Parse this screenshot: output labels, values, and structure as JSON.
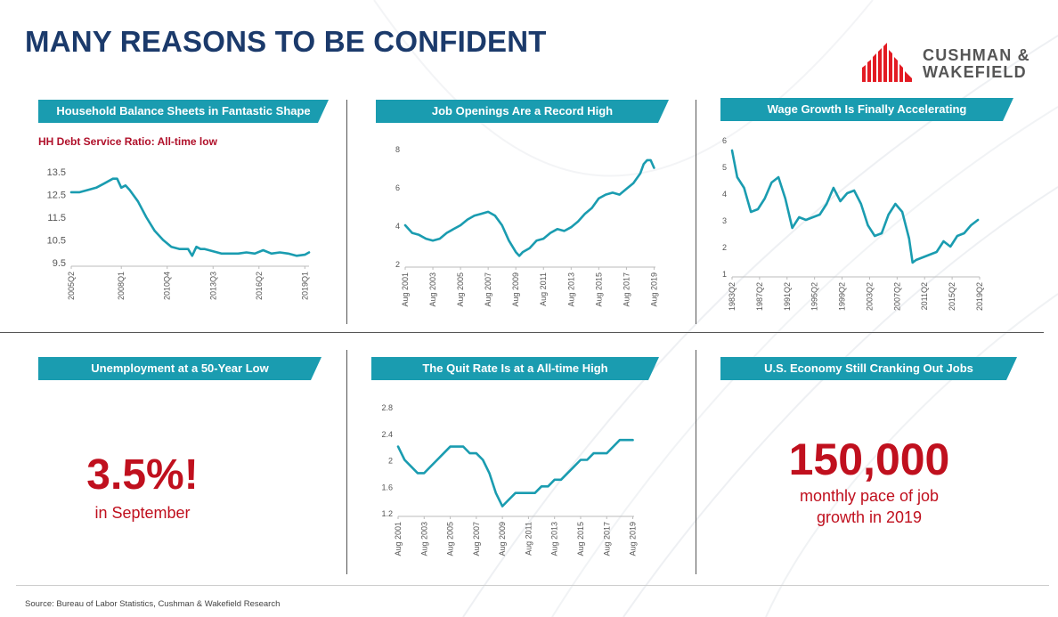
{
  "page": {
    "title": "MANY REASONS TO BE CONFIDENT",
    "logo": {
      "line1": "CUSHMAN &",
      "line2": "WAKEFIELD",
      "color": "#e31b23"
    },
    "source": "Source:  Bureau of Labor Statistics, Cushman & Wakefield Research",
    "accent": "#1a9cb0",
    "highlight": "#c0101e"
  },
  "panels": {
    "household": {
      "title": "Household Balance Sheets in Fantastic Shape",
      "subtitle": "HH Debt Service Ratio: All-time low"
    },
    "job_openings": {
      "title": "Job Openings Are a Record High"
    },
    "wage": {
      "title": "Wage Growth Is Finally Accelerating"
    },
    "unemployment": {
      "title": "Unemployment at a 50-Year Low",
      "value": "3.5%!",
      "caption": "in September"
    },
    "quit": {
      "title": "The Quit Rate Is at a All-time High"
    },
    "jobs": {
      "title": "U.S. Economy Still Cranking Out Jobs",
      "value": "150,000",
      "caption_line1": "monthly pace of job",
      "caption_line2": "growth in 2019"
    }
  },
  "chart_data": [
    {
      "id": "household",
      "type": "line",
      "title": "HH Debt Service Ratio: All-time low",
      "x_domain": [
        2005.0,
        2019.25
      ],
      "ylim": [
        9.5,
        13.5
      ],
      "yticks": [
        9.5,
        10.5,
        11.5,
        12.5,
        13.5
      ],
      "yticklabels": [
        "9.5",
        "10.5",
        "11.5",
        "12.5",
        "13.5"
      ],
      "xticks": [
        2005.0,
        2008.0,
        2010.75,
        2013.5,
        2016.25,
        2019.0
      ],
      "xticklabels": [
        "2005Q2",
        "2008Q1",
        "2010Q4",
        "2013Q3",
        "2016Q2",
        "2019Q1"
      ],
      "series": [
        {
          "name": "HH Debt Service Ratio",
          "x": [
            2005.0,
            2005.5,
            2006.0,
            2006.5,
            2007.0,
            2007.5,
            2007.75,
            2008.0,
            2008.25,
            2008.5,
            2009.0,
            2009.5,
            2010.0,
            2010.5,
            2011.0,
            2011.5,
            2012.0,
            2012.25,
            2012.5,
            2012.75,
            2013.0,
            2013.5,
            2014.0,
            2014.5,
            2015.0,
            2015.5,
            2016.0,
            2016.5,
            2017.0,
            2017.5,
            2018.0,
            2018.5,
            2019.0,
            2019.25
          ],
          "values": [
            12.6,
            12.6,
            12.7,
            12.8,
            13.0,
            13.2,
            13.2,
            12.8,
            12.9,
            12.7,
            12.2,
            11.5,
            10.9,
            10.5,
            10.2,
            10.1,
            10.1,
            9.8,
            10.2,
            10.1,
            10.1,
            10.0,
            9.9,
            9.9,
            9.9,
            9.95,
            9.9,
            10.05,
            9.9,
            9.95,
            9.9,
            9.8,
            9.85,
            9.95
          ]
        }
      ]
    },
    {
      "id": "job_openings",
      "type": "line",
      "title": "Job Openings Are a Record High",
      "x_domain": [
        2001.0,
        2019.1
      ],
      "ylim": [
        2,
        8
      ],
      "yticks": [
        2,
        4,
        6,
        8
      ],
      "yticklabels": [
        "2",
        "4",
        "6",
        "8"
      ],
      "xticks": [
        2001.0,
        2003.0,
        2005.0,
        2007.0,
        2009.0,
        2011.0,
        2013.0,
        2015.0,
        2017.0,
        2019.0
      ],
      "xticklabels": [
        "Aug 2001",
        "Aug 2003",
        "Aug 2005",
        "Aug 2007",
        "Aug 2009",
        "Aug 2011",
        "Aug 2013",
        "Aug 2015",
        "Aug 2017",
        "Aug 2019"
      ],
      "series": [
        {
          "name": "Job Openings",
          "x": [
            2001.0,
            2001.5,
            2002.0,
            2002.5,
            2003.0,
            2003.5,
            2004.0,
            2004.5,
            2005.0,
            2005.5,
            2006.0,
            2006.5,
            2007.0,
            2007.5,
            2008.0,
            2008.5,
            2009.0,
            2009.25,
            2009.5,
            2010.0,
            2010.5,
            2011.0,
            2011.5,
            2012.0,
            2012.5,
            2013.0,
            2013.5,
            2014.0,
            2014.5,
            2015.0,
            2015.5,
            2016.0,
            2016.5,
            2017.0,
            2017.5,
            2018.0,
            2018.25,
            2018.5,
            2018.75,
            2019.0
          ],
          "values": [
            4.0,
            3.6,
            3.5,
            3.3,
            3.2,
            3.3,
            3.6,
            3.8,
            4.0,
            4.3,
            4.5,
            4.6,
            4.7,
            4.5,
            4.0,
            3.2,
            2.6,
            2.4,
            2.6,
            2.8,
            3.2,
            3.3,
            3.6,
            3.8,
            3.7,
            3.9,
            4.2,
            4.6,
            4.9,
            5.4,
            5.6,
            5.7,
            5.6,
            5.9,
            6.2,
            6.7,
            7.2,
            7.4,
            7.4,
            7.0
          ]
        }
      ]
    },
    {
      "id": "wage",
      "type": "line",
      "title": "Wage Growth Is Finally Accelerating",
      "x_domain": [
        1983.25,
        2019.25
      ],
      "ylim": [
        1,
        6
      ],
      "yticks": [
        1,
        2,
        3,
        4,
        5,
        6
      ],
      "yticklabels": [
        "1",
        "2",
        "3",
        "4",
        "5",
        "6"
      ],
      "xticks": [
        1983.25,
        1987.25,
        1991.25,
        1995.25,
        1999.25,
        2003.25,
        2007.25,
        2011.25,
        2015.25,
        2019.25
      ],
      "xticklabels": [
        "1983Q2",
        "1987Q2",
        "1991Q2",
        "1995Q2",
        "1999Q2",
        "2003Q2",
        "2007Q2",
        "2011Q2",
        "2015Q2",
        "2019Q2"
      ],
      "series": [
        {
          "name": "Wage Growth",
          "x": [
            1983.25,
            1984.0,
            1985.0,
            1986.0,
            1987.0,
            1988.0,
            1989.0,
            1990.0,
            1991.0,
            1992.0,
            1993.0,
            1994.0,
            1995.0,
            1996.0,
            1997.0,
            1998.0,
            1999.0,
            2000.0,
            2001.0,
            2002.0,
            2003.0,
            2004.0,
            2005.0,
            2006.0,
            2007.0,
            2008.0,
            2009.0,
            2009.5,
            2010.0,
            2011.0,
            2012.0,
            2013.0,
            2014.0,
            2015.0,
            2016.0,
            2017.0,
            2018.0,
            2019.0
          ],
          "values": [
            5.6,
            4.6,
            4.2,
            3.3,
            3.4,
            3.8,
            4.4,
            4.6,
            3.8,
            2.7,
            3.1,
            3.0,
            3.1,
            3.2,
            3.6,
            4.2,
            3.7,
            4.0,
            4.1,
            3.6,
            2.8,
            2.4,
            2.5,
            3.2,
            3.6,
            3.3,
            2.3,
            1.4,
            1.5,
            1.6,
            1.7,
            1.8,
            2.2,
            2.0,
            2.4,
            2.5,
            2.8,
            3.0
          ]
        }
      ]
    },
    {
      "id": "quit",
      "type": "line",
      "title": "The Quit Rate Is at a All-time High",
      "x_domain": [
        2001.0,
        2019.1
      ],
      "ylim": [
        1.2,
        2.8
      ],
      "yticks": [
        1.2,
        1.6,
        2.0,
        2.4,
        2.8
      ],
      "yticklabels": [
        "1.2",
        "1.6",
        "2",
        "2.4",
        "2.8"
      ],
      "xticks": [
        2001.0,
        2003.0,
        2005.0,
        2007.0,
        2009.0,
        2011.0,
        2013.0,
        2015.0,
        2017.0,
        2019.0
      ],
      "xticklabels": [
        "Aug 2001",
        "Aug 2003",
        "Aug 2005",
        "Aug 2007",
        "Aug 2009",
        "Aug 2011",
        "Aug 2013",
        "Aug 2015",
        "Aug 2017",
        "Aug 2019"
      ],
      "series": [
        {
          "name": "Quit Rate",
          "x": [
            2001.0,
            2001.5,
            2002.0,
            2002.5,
            2003.0,
            2003.5,
            2004.0,
            2004.5,
            2005.0,
            2005.5,
            2006.0,
            2006.5,
            2007.0,
            2007.5,
            2008.0,
            2008.5,
            2009.0,
            2009.5,
            2010.0,
            2010.5,
            2011.0,
            2011.5,
            2012.0,
            2012.5,
            2013.0,
            2013.5,
            2014.0,
            2014.5,
            2015.0,
            2015.5,
            2016.0,
            2016.5,
            2017.0,
            2017.5,
            2018.0,
            2018.5,
            2019.0
          ],
          "values": [
            2.2,
            2.0,
            1.9,
            1.8,
            1.8,
            1.9,
            2.0,
            2.1,
            2.2,
            2.2,
            2.2,
            2.1,
            2.1,
            2.0,
            1.8,
            1.5,
            1.3,
            1.4,
            1.5,
            1.5,
            1.5,
            1.5,
            1.6,
            1.6,
            1.7,
            1.7,
            1.8,
            1.9,
            2.0,
            2.0,
            2.1,
            2.1,
            2.1,
            2.2,
            2.3,
            2.3,
            2.3
          ]
        }
      ]
    }
  ]
}
